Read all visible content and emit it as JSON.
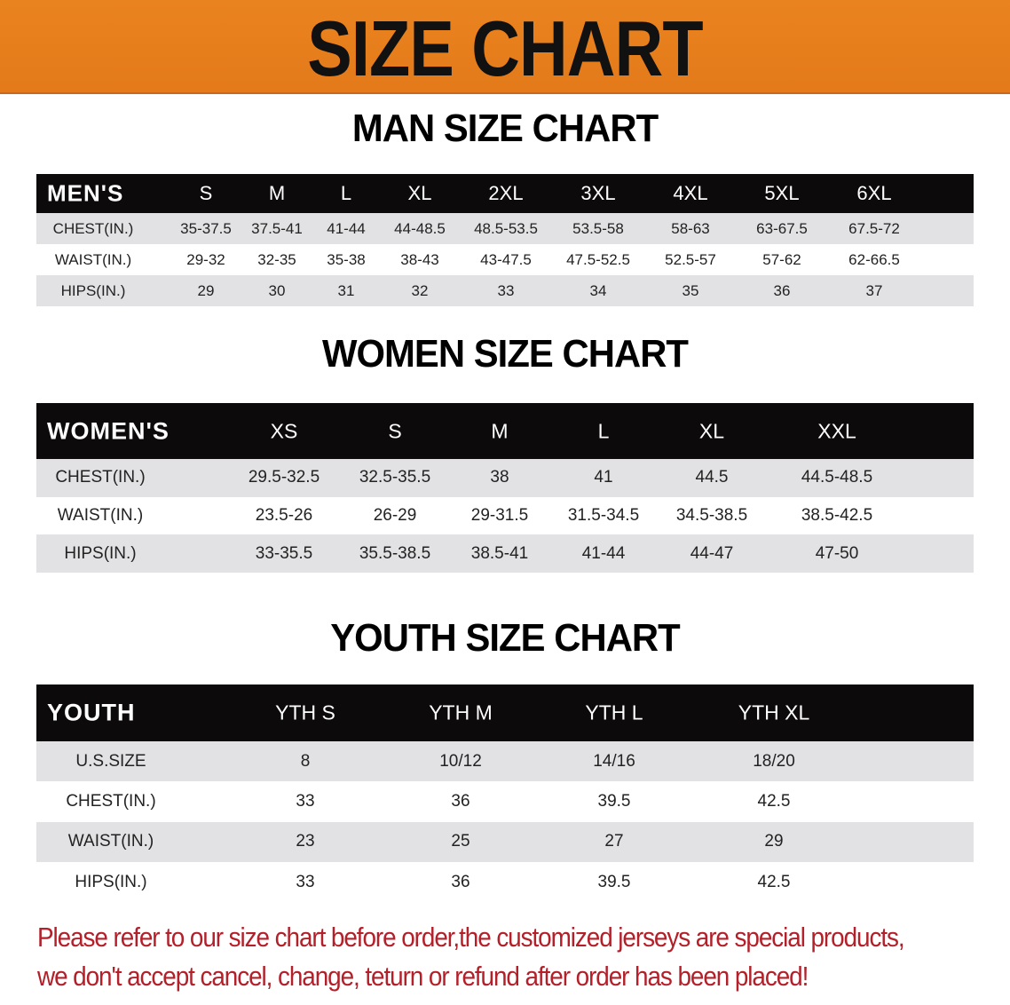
{
  "banner": {
    "title": "SIZE CHART",
    "color": "#E6801E"
  },
  "men": {
    "title": "MAN SIZE CHART",
    "header": [
      "MEN'S",
      "S",
      "M",
      "L",
      "XL",
      "2XL",
      "3XL",
      "4XL",
      "5XL",
      "6XL"
    ],
    "rows": [
      [
        "CHEST(IN.)",
        "35-37.5",
        "37.5-41",
        "41-44",
        "44-48.5",
        "48.5-53.5",
        "53.5-58",
        "58-63",
        "63-67.5",
        "67.5-72"
      ],
      [
        "WAIST(IN.)",
        "29-32",
        "32-35",
        "35-38",
        "38-43",
        "43-47.5",
        "47.5-52.5",
        "52.5-57",
        "57-62",
        "62-66.5"
      ],
      [
        "HIPS(IN.)",
        "29",
        "30",
        "31",
        "32",
        "33",
        "34",
        "35",
        "36",
        "37"
      ]
    ]
  },
  "women": {
    "title": "WOMEN SIZE CHART",
    "header": [
      "WOMEN'S",
      "XS",
      "S",
      "M",
      "L",
      "XL",
      "XXL"
    ],
    "rows": [
      [
        "CHEST(IN.)",
        "29.5-32.5",
        "32.5-35.5",
        "38",
        "41",
        "44.5",
        "44.5-48.5"
      ],
      [
        "WAIST(IN.)",
        "23.5-26",
        "26-29",
        "29-31.5",
        "31.5-34.5",
        "34.5-38.5",
        "38.5-42.5"
      ],
      [
        "HIPS(IN.)",
        "33-35.5",
        "35.5-38.5",
        "38.5-41",
        "41-44",
        "44-47",
        "47-50"
      ]
    ]
  },
  "youth": {
    "title": "YOUTH SIZE CHART",
    "header": [
      "YOUTH",
      "YTH S",
      "YTH M",
      "YTH L",
      "YTH XL"
    ],
    "rows": [
      [
        "U.S.SIZE",
        "8",
        "10/12",
        "14/16",
        "18/20"
      ],
      [
        "CHEST(IN.)",
        "33",
        "36",
        "39.5",
        "42.5"
      ],
      [
        "WAIST(IN.)",
        "23",
        "25",
        "27",
        "29"
      ],
      [
        "HIPS(IN.)",
        "33",
        "36",
        "39.5",
        "42.5"
      ]
    ]
  },
  "notice": {
    "line1": "Please refer to our size chart before order,the customized jerseys are special products,",
    "line2": "we don't accept cancel, change, teturn or refund after order has been placed!",
    "color": "#B3202A"
  }
}
